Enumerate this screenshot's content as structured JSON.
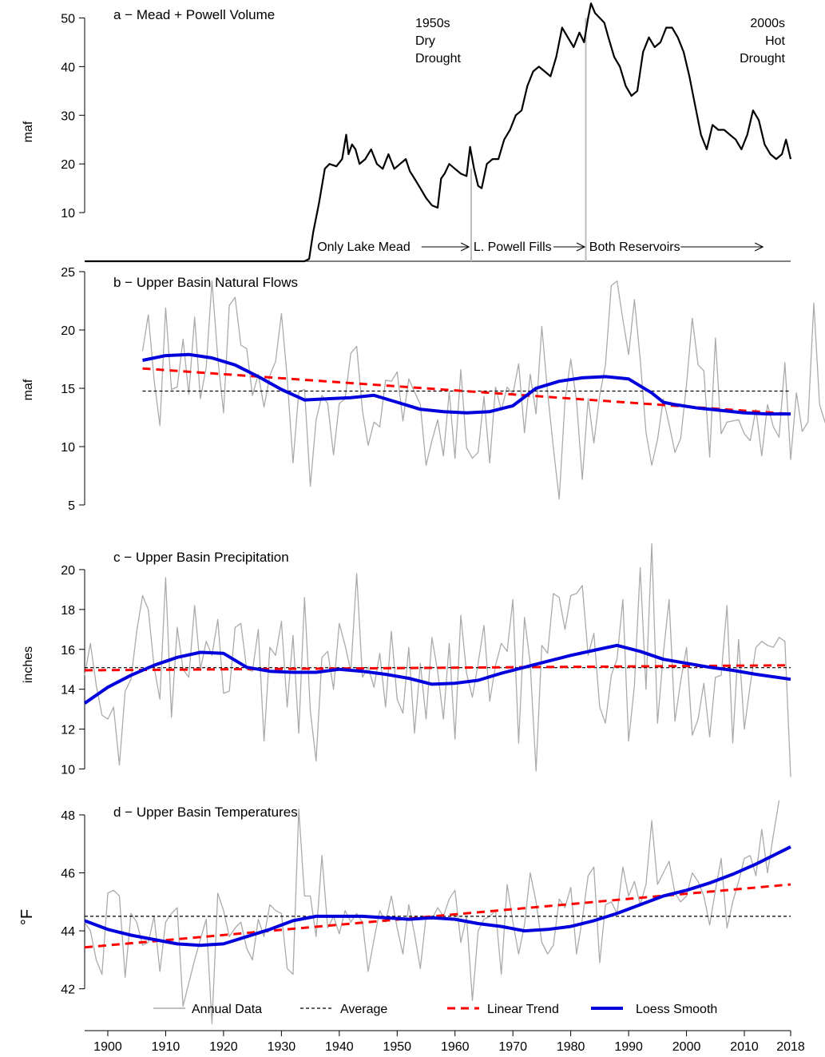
{
  "chart_data": [
    {
      "type": "line",
      "title": "a − Mead + Powell Volume",
      "ylabel": "maf",
      "xlim": [
        1896,
        2018
      ],
      "ylim": [
        0,
        52
      ],
      "yticks": [
        10,
        20,
        30,
        40,
        50
      ],
      "annotations": [
        {
          "lines": [
            "1950s",
            "Dry",
            "Drought"
          ],
          "x": 1956,
          "y": 48
        },
        {
          "lines": [
            "2000s",
            "Hot",
            "Drought"
          ],
          "x": 2016,
          "y": 48
        }
      ],
      "periods": [
        {
          "label": "Only Lake Mead",
          "start": 1935.5,
          "end": 1962.5
        },
        {
          "label": "L. Powell Fills",
          "start": 1962.5,
          "end": 1982.5
        },
        {
          "label": "Both Reservoirs",
          "start": 1982.5,
          "end": 2013
        }
      ],
      "period_lines": [
        1962.8,
        1982.6
      ],
      "series": [
        {
          "kind": "volume",
          "color": "#000000",
          "x": [
            1896,
            1934,
            1934.8,
            1935.5,
            1936.5,
            1937.5,
            1938.3,
            1939.5,
            1940.5,
            1941.2,
            1941.6,
            1942.2,
            1942.8,
            1943.5,
            1944.5,
            1945.5,
            1946.5,
            1947.5,
            1948.5,
            1949.5,
            1950.5,
            1951.5,
            1952.2,
            1953,
            1954,
            1955,
            1956,
            1957,
            1957.6,
            1958.2,
            1959,
            1960,
            1961,
            1962,
            1962.6,
            1963.3,
            1964,
            1964.6,
            1965.5,
            1966.5,
            1967.5,
            1968.5,
            1969.5,
            1970.5,
            1971.5,
            1972.5,
            1973.5,
            1974.5,
            1975.5,
            1976.5,
            1977.5,
            1978.5,
            1979.5,
            1980.5,
            1981.5,
            1982.3,
            1983,
            1983.5,
            1984.2,
            1985,
            1985.8,
            1986.5,
            1987.5,
            1988.5,
            1989.5,
            1990.5,
            1991.5,
            1992.5,
            1993.5,
            1994.5,
            1995.5,
            1996.5,
            1997.5,
            1998.5,
            1999.5,
            2000.5,
            2001.5,
            2002.5,
            2003.5,
            2004.5,
            2005.5,
            2006.5,
            2007.5,
            2008.5,
            2009.5,
            2010.5,
            2011.5,
            2012.5,
            2013.5,
            2014.5,
            2015.5,
            2016.5,
            2017.2,
            2018
          ],
          "y": [
            0,
            0,
            0.5,
            6,
            12,
            19,
            20,
            19.5,
            21,
            26,
            22,
            24,
            23,
            20,
            21,
            23,
            20,
            19,
            22,
            19,
            20,
            21,
            18.5,
            17,
            15,
            13,
            11.5,
            11,
            17,
            18,
            20,
            19,
            18,
            17.5,
            23.5,
            19,
            15.5,
            15,
            20,
            21,
            21,
            25,
            27,
            30,
            31,
            36,
            39,
            40,
            39,
            38,
            42,
            48,
            46,
            44,
            47,
            45,
            50,
            53,
            51,
            50,
            49,
            46,
            42,
            40,
            36,
            34,
            35,
            43,
            46,
            44,
            45,
            48,
            48,
            46,
            43,
            38,
            32,
            26,
            23,
            28,
            27,
            27,
            26,
            25,
            23,
            26,
            31,
            29,
            24,
            22,
            21,
            22,
            25,
            21
          ]
        }
      ]
    },
    {
      "type": "line",
      "title": "b − Upper Basin Natural Flows",
      "ylabel": "maf",
      "xlim": [
        1896,
        2018
      ],
      "ylim": [
        5,
        25
      ],
      "yticks": [
        5,
        10,
        15,
        20,
        25
      ],
      "series": [
        {
          "kind": "annual",
          "color": "#aaaaaa",
          "x0": 1906,
          "values": [
            18.2,
            21.3,
            15.7,
            11.8,
            21.9,
            14.9,
            15.1,
            19.2,
            14.5,
            21.1,
            14.1,
            16.8,
            24.2,
            17.6,
            12.9,
            22.1,
            22.8,
            18.7,
            18.4,
            14.4,
            16.2,
            13.4,
            16.1,
            17.3,
            21.4,
            15.9,
            8.6,
            14.7,
            14.9,
            6.6,
            12.3,
            14.4,
            13.7,
            9.3,
            13.7,
            14.1,
            18.0,
            18.6,
            13.1,
            10.1,
            12.1,
            11.7,
            15.7,
            15.6,
            16.4,
            12.2,
            15.8,
            14.7,
            13.6,
            8.4,
            10.5,
            12.3,
            9.2,
            14.7,
            9.0,
            16.6,
            9.9,
            9.0,
            9.5,
            14.3,
            8.6,
            15.1,
            13.1,
            15.1,
            14.5,
            17.1,
            11.2,
            16.2,
            12.8,
            20.3,
            14.6,
            9.9,
            5.5,
            13.9,
            17.5,
            13.9,
            7.2,
            14.1,
            10.3,
            14.4,
            17.0,
            23.8,
            24.2,
            20.9,
            17.9,
            22.6,
            17.5,
            11.2,
            8.4,
            10.6,
            14.1,
            11.9,
            9.5,
            10.7,
            15.3,
            21.0,
            17.0,
            16.5,
            9.1,
            19.3,
            11.1,
            12.1,
            12.2,
            12.3,
            11.1,
            10.5,
            13.2,
            9.2,
            13.6,
            11.7,
            10.8,
            17.2,
            8.9,
            14.6,
            11.3,
            12.1,
            22.3,
            13.6,
            12.0,
            16.3,
            17.3,
            8.2
          ]
        },
        {
          "kind": "average",
          "color": "#000000",
          "x": [
            1906,
            2018
          ],
          "y": [
            14.76,
            14.76
          ]
        },
        {
          "kind": "trend",
          "color": "#ff0000",
          "x": [
            1906,
            2018
          ],
          "y": [
            16.7,
            12.8
          ]
        },
        {
          "kind": "loess",
          "color": "#0000dd",
          "x": [
            1906,
            1910,
            1914,
            1918,
            1922,
            1926,
            1930,
            1934,
            1938,
            1942,
            1946,
            1950,
            1954,
            1958,
            1962,
            1966,
            1970,
            1974,
            1978,
            1982,
            1986,
            1990,
            1994,
            1996,
            1998,
            2002,
            2006,
            2010,
            2014,
            2018
          ],
          "y": [
            17.4,
            17.8,
            17.9,
            17.6,
            17.0,
            16.0,
            14.9,
            14.0,
            14.1,
            14.2,
            14.4,
            13.8,
            13.2,
            13.0,
            12.9,
            13.0,
            13.5,
            15.0,
            15.6,
            15.9,
            16.0,
            15.8,
            14.6,
            13.8,
            13.6,
            13.3,
            13.1,
            12.9,
            12.8,
            12.8
          ]
        }
      ]
    },
    {
      "type": "line",
      "title": "c − Upper Basin Precipitation",
      "ylabel": "inches",
      "xlim": [
        1896,
        2018
      ],
      "ylim": [
        10,
        21
      ],
      "yticks": [
        10,
        12,
        14,
        16,
        18,
        20
      ],
      "series": [
        {
          "kind": "annual",
          "color": "#aaaaaa",
          "x0": 1896,
          "values": [
            14.7,
            16.3,
            14.2,
            12.7,
            12.5,
            13.1,
            10.2,
            13.9,
            14.5,
            16.9,
            18.7,
            18.0,
            15.1,
            13.5,
            19.6,
            12.6,
            17.1,
            15.0,
            14.6,
            18.2,
            15.0,
            16.4,
            15.7,
            17.5,
            13.8,
            13.9,
            17.1,
            17.3,
            15.0,
            14.9,
            17.0,
            11.4,
            16.1,
            15.7,
            17.4,
            13.1,
            16.7,
            11.8,
            18.6,
            12.9,
            10.4,
            15.6,
            15.9,
            14.0,
            17.3,
            16.2,
            14.9,
            19.8,
            14.6,
            15.1,
            14.1,
            15.8,
            13.1,
            16.9,
            13.5,
            12.8,
            16.1,
            11.8,
            15.3,
            12.5,
            16.6,
            14.9,
            12.5,
            16.3,
            11.5,
            17.7,
            14.8,
            13.6,
            15.3,
            17.2,
            13.4,
            15.2,
            16.3,
            15.9,
            18.5,
            11.3,
            17.6,
            15.3,
            9.9,
            16.2,
            15.8,
            18.8,
            18.6,
            17.0,
            18.7,
            18.8,
            19.2,
            15.7,
            16.8,
            13.1,
            12.3,
            14.7,
            15.5,
            18.5,
            11.4,
            14.2,
            20.1,
            14.0,
            21.3,
            12.3,
            15.8,
            18.5,
            12.4,
            14.4,
            16.1,
            11.7,
            12.5,
            14.3,
            11.6,
            14.6,
            14.7,
            18.2,
            11.3,
            16.5,
            12.0,
            14.2,
            16.1,
            16.4,
            16.2,
            16.1,
            16.6,
            16.4,
            9.6
          ]
        },
        {
          "kind": "average",
          "color": "#000000",
          "x": [
            1896,
            2018
          ],
          "y": [
            15.08,
            15.08
          ]
        },
        {
          "kind": "trend",
          "color": "#ff0000",
          "x": [
            1896,
            2018
          ],
          "y": [
            14.95,
            15.2
          ]
        },
        {
          "kind": "loess",
          "color": "#0000dd",
          "x": [
            1896,
            1900,
            1904,
            1908,
            1912,
            1916,
            1920,
            1924,
            1928,
            1932,
            1936,
            1940,
            1944,
            1948,
            1952,
            1956,
            1960,
            1964,
            1968,
            1972,
            1976,
            1980,
            1984,
            1988,
            1992,
            1996,
            2000,
            2004,
            2008,
            2012,
            2018
          ],
          "y": [
            13.3,
            14.1,
            14.7,
            15.2,
            15.6,
            15.85,
            15.8,
            15.1,
            14.9,
            14.85,
            14.85,
            15.0,
            14.9,
            14.75,
            14.55,
            14.25,
            14.3,
            14.45,
            14.8,
            15.1,
            15.4,
            15.7,
            15.95,
            16.2,
            15.9,
            15.5,
            15.3,
            15.1,
            14.95,
            14.75,
            14.5
          ]
        }
      ]
    },
    {
      "type": "line",
      "title": "d − Upper Basin Temperatures",
      "ylabel": "°F",
      "xlim": [
        1896,
        2018
      ],
      "ylim": [
        41,
        48.3
      ],
      "yticks": [
        42,
        44,
        46,
        48
      ],
      "xticks": [
        1900,
        1910,
        1920,
        1930,
        1940,
        1950,
        1960,
        1970,
        1980,
        1990,
        2000,
        2010
      ],
      "xtick_last": 2018,
      "series": [
        {
          "kind": "annual",
          "color": "#aaaaaa",
          "x0": 1896,
          "values": [
            44.3,
            44.0,
            43.0,
            42.5,
            45.3,
            45.4,
            45.2,
            42.4,
            44.6,
            44.3,
            43.5,
            43.6,
            44.5,
            42.6,
            44.3,
            44.6,
            44.8,
            41.4,
            42.2,
            43.0,
            43.7,
            44.4,
            40.8,
            45.3,
            44.7,
            43.8,
            44.1,
            44.3,
            43.4,
            43.0,
            44.4,
            43.8,
            44.9,
            44.7,
            44.6,
            42.7,
            42.5,
            48.2,
            45.2,
            45.2,
            43.8,
            46.6,
            44.1,
            44.5,
            43.9,
            44.7,
            44.3,
            44.6,
            44.3,
            42.6,
            43.7,
            44.7,
            44.3,
            45.2,
            44.1,
            43.2,
            44.9,
            43.9,
            42.7,
            44.5,
            44.4,
            44.8,
            44.5,
            45.1,
            45.4,
            43.6,
            44.5,
            41.6,
            44.0,
            44.4,
            44.5,
            44.7,
            42.5,
            45.6,
            44.3,
            43.2,
            44.2,
            46.0,
            45.0,
            43.6,
            43.2,
            43.5,
            45.1,
            44.8,
            45.5,
            43.2,
            44.4,
            45.9,
            46.2,
            42.9,
            44.9,
            45.0,
            44.6,
            46.2,
            45.2,
            45.7,
            44.9,
            45.6,
            47.8,
            45.6,
            46.0,
            46.4,
            45.3,
            45.0,
            45.2,
            46.0,
            45.7,
            45.2,
            44.2,
            45.4,
            46.5,
            44.1,
            45.0,
            45.7,
            46.5,
            46.6,
            45.9,
            47.5,
            46.0,
            47.3,
            48.5
          ]
        },
        {
          "kind": "average",
          "color": "#000000",
          "x": [
            1896,
            2018
          ],
          "y": [
            44.5,
            44.5
          ]
        },
        {
          "kind": "trend",
          "color": "#ff0000",
          "x": [
            1896,
            2018
          ],
          "y": [
            43.43,
            45.6
          ]
        },
        {
          "kind": "loess",
          "color": "#0000dd",
          "x": [
            1896,
            1900,
            1904,
            1908,
            1912,
            1916,
            1920,
            1924,
            1928,
            1932,
            1936,
            1940,
            1944,
            1948,
            1952,
            1956,
            1960,
            1964,
            1968,
            1972,
            1976,
            1980,
            1984,
            1988,
            1992,
            1996,
            2000,
            2004,
            2008,
            2012,
            2018
          ],
          "y": [
            44.35,
            44.05,
            43.85,
            43.7,
            43.55,
            43.5,
            43.55,
            43.8,
            44.05,
            44.35,
            44.5,
            44.5,
            44.5,
            44.45,
            44.4,
            44.45,
            44.4,
            44.25,
            44.15,
            44.0,
            44.05,
            44.15,
            44.35,
            44.6,
            44.9,
            45.2,
            45.4,
            45.65,
            45.95,
            46.3,
            46.9
          ]
        }
      ]
    }
  ],
  "legend": {
    "placement": "bottom",
    "items": [
      {
        "label": "Annual Data",
        "kind": "annual",
        "color": "#aaaaaa"
      },
      {
        "label": "Average",
        "kind": "average",
        "color": "#000000"
      },
      {
        "label": "Linear Trend",
        "kind": "trend",
        "color": "#ff0000"
      },
      {
        "label": "Loess Smooth",
        "kind": "loess",
        "color": "#0000dd"
      }
    ]
  }
}
